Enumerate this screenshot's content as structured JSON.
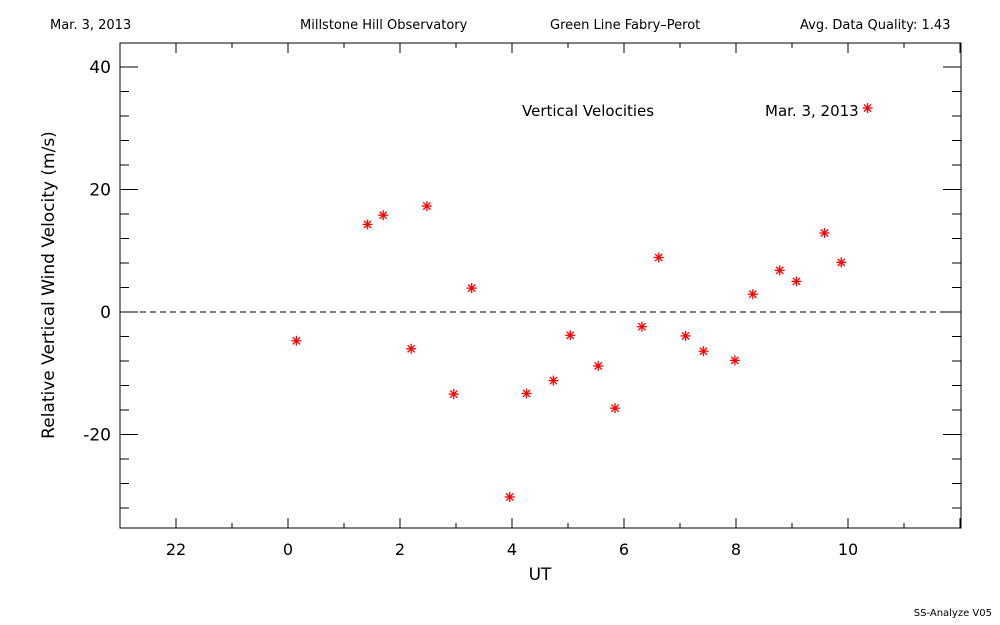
{
  "header": {
    "date": "Mar. 3, 2013",
    "observatory": "Millstone Hill Observatory",
    "instrument": "Green Line Fabry–Perot",
    "quality": "Avg. Data Quality: 1.43"
  },
  "footer": {
    "version": "SS-Analyze V05"
  },
  "chart_data": {
    "type": "scatter",
    "title": "Vertical Velocities",
    "date_label": "Mar. 3, 2013",
    "xlabel": "UT",
    "ylabel": "Relative Vertical Wind Velocity (m/s)",
    "x_tick_labels": [
      "22",
      "0",
      "2",
      "4",
      "6",
      "8",
      "10"
    ],
    "y_tick_labels": [
      "-20",
      "0",
      "20",
      "40"
    ],
    "ylim": [
      -35,
      40
    ],
    "reference_line": 0,
    "marker_color": "#ff0000",
    "series": [
      {
        "points": [
          {
            "x": 0.15,
            "y": -4.7
          },
          {
            "x": 1.42,
            "y": 14.3
          },
          {
            "x": 1.7,
            "y": 15.8
          },
          {
            "x": 2.2,
            "y": -6.0
          },
          {
            "x": 2.48,
            "y": 17.3
          },
          {
            "x": 2.96,
            "y": -13.4
          },
          {
            "x": 3.28,
            "y": 3.9
          },
          {
            "x": 3.96,
            "y": -30.2
          },
          {
            "x": 4.26,
            "y": -13.3
          },
          {
            "x": 4.74,
            "y": -11.2
          },
          {
            "x": 5.04,
            "y": -3.8
          },
          {
            "x": 5.54,
            "y": -8.8
          },
          {
            "x": 5.84,
            "y": -15.7
          },
          {
            "x": 6.32,
            "y": -2.4
          },
          {
            "x": 6.62,
            "y": 8.9
          },
          {
            "x": 7.1,
            "y": -3.9
          },
          {
            "x": 7.42,
            "y": -6.4
          },
          {
            "x": 7.98,
            "y": -7.9
          },
          {
            "x": 8.3,
            "y": 2.9
          },
          {
            "x": 8.78,
            "y": 6.8
          },
          {
            "x": 9.08,
            "y": 5.0
          },
          {
            "x": 9.58,
            "y": 12.9
          },
          {
            "x": 9.88,
            "y": 8.1
          },
          {
            "x": 10.35,
            "y": 33.3
          }
        ]
      }
    ]
  }
}
